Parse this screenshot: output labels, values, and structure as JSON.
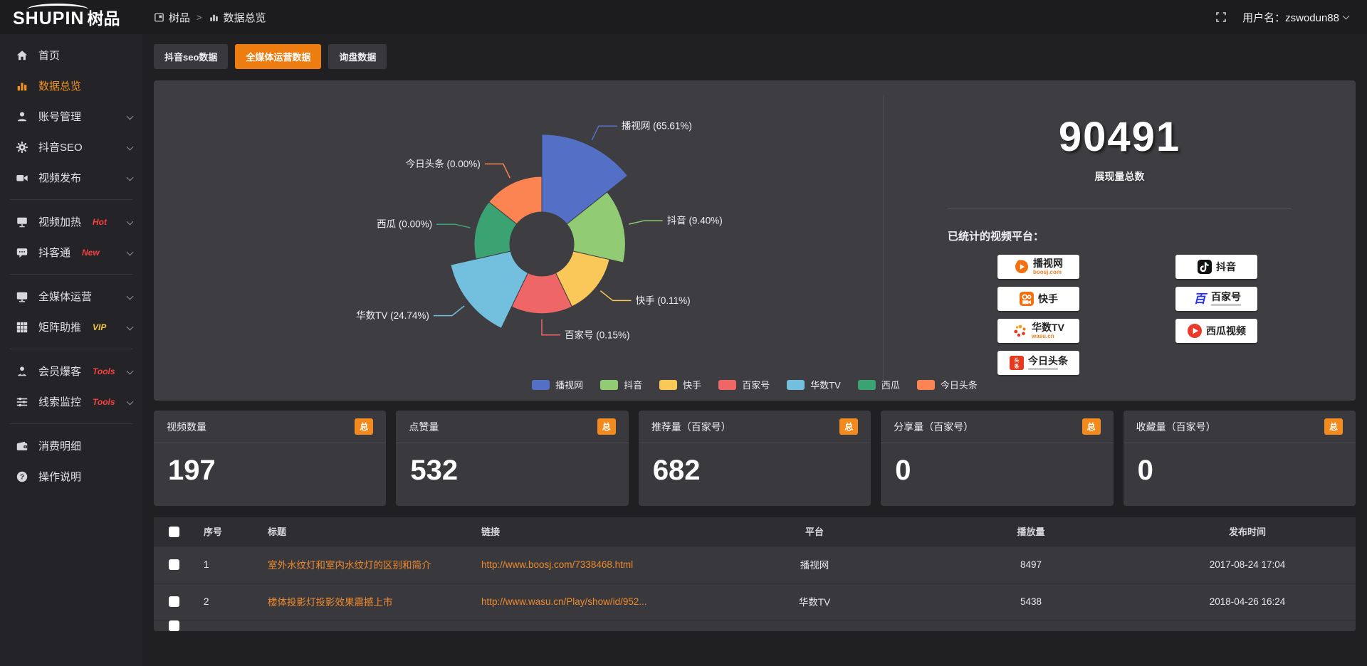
{
  "topbar": {
    "brand_en": "SHUPIN",
    "brand_cn": "树品",
    "breadcrumb": {
      "root": "树品",
      "separator": ">",
      "current": "数据总览"
    },
    "username": "用户名：zswodun88"
  },
  "sidebar": {
    "items": [
      {
        "label": "首页",
        "icon": "home-icon"
      },
      {
        "label": "数据总览",
        "icon": "chart-icon",
        "active": true
      },
      {
        "label": "账号管理",
        "icon": "user-icon",
        "chevron": true
      },
      {
        "label": "抖音SEO",
        "icon": "gear-icon",
        "chevron": true
      },
      {
        "label": "视频发布",
        "icon": "camera-icon",
        "chevron": true
      },
      {
        "label": "视频加热",
        "icon": "heat-icon",
        "tag": "Hot",
        "tag_color": "#f5413e",
        "chevron": true
      },
      {
        "label": "抖客通",
        "icon": "chat-icon",
        "tag": "New",
        "tag_color": "#f5413e",
        "chevron": true
      },
      {
        "label": "全媒体运营",
        "icon": "monitor-icon",
        "chevron": true
      },
      {
        "label": "矩阵助推",
        "icon": "grid-icon",
        "tag": "VIP",
        "tag_color": "#edc243",
        "chevron": true
      },
      {
        "label": "会员爆客",
        "icon": "member-icon",
        "tag": "Tools",
        "tag_color": "#f5413e",
        "chevron": true
      },
      {
        "label": "线索监控",
        "icon": "sliders-icon",
        "tag": "Tools",
        "tag_color": "#f5413e",
        "chevron": true
      },
      {
        "label": "消费明细",
        "icon": "wallet-icon"
      },
      {
        "label": "操作说明",
        "icon": "help-icon"
      }
    ]
  },
  "tabs": {
    "items": [
      {
        "label": "抖音seo数据"
      },
      {
        "label": "全媒体运营数据",
        "active": true
      },
      {
        "label": "询盘数据"
      }
    ]
  },
  "chart_data": {
    "type": "pie",
    "subtype": "nightingale-rose",
    "legend_position": "bottom",
    "hole": true,
    "items": [
      {
        "name": "播视网",
        "pct": 65.61,
        "label": "播视网 (65.61%)",
        "color": "#5470c6"
      },
      {
        "name": "抖音",
        "pct": 9.4,
        "label": "抖音 (9.40%)",
        "color": "#91cc75"
      },
      {
        "name": "快手",
        "pct": 0.11,
        "label": "快手 (0.11%)",
        "color": "#fac858"
      },
      {
        "name": "百家号",
        "pct": 0.15,
        "label": "百家号 (0.15%)",
        "color": "#ee6666"
      },
      {
        "name": "华数TV",
        "pct": 24.74,
        "label": "华数TV (24.74%)",
        "color": "#73c0de"
      },
      {
        "name": "西瓜",
        "pct": 0.0,
        "label": "西瓜 (0.00%)",
        "color": "#3ba272"
      },
      {
        "name": "今日头条",
        "pct": 0.0,
        "label": "今日头条 (0.00%)",
        "color": "#fc8452"
      }
    ]
  },
  "summary": {
    "total_value": "90491",
    "total_label": "展现量总数",
    "platforms_title": "已统计的视频平台：",
    "platforms": [
      {
        "name": "播视网",
        "sub": "boosj.com",
        "icon": "boosj-icon"
      },
      {
        "name": "快手",
        "icon": "kuaishou-icon"
      },
      {
        "name": "华数TV",
        "sub": "wasu.cn",
        "icon": "wasu-icon"
      },
      {
        "name": "今日头条",
        "icon": "toutiao-icon"
      },
      {
        "name": "抖音",
        "icon": "douyin-icon"
      },
      {
        "name": "百家号",
        "icon": "baijiahao-icon"
      },
      {
        "name": "西瓜视频",
        "icon": "xigua-icon"
      }
    ]
  },
  "stat_cards": {
    "items": [
      {
        "label": "视频数量",
        "badge": "总",
        "value": "197"
      },
      {
        "label": "点赞量",
        "badge": "总",
        "value": "532"
      },
      {
        "label": "推荐量（百家号）",
        "badge": "总",
        "value": "682"
      },
      {
        "label": "分享量（百家号）",
        "badge": "总",
        "value": "0"
      },
      {
        "label": "收藏量（百家号）",
        "badge": "总",
        "value": "0"
      }
    ]
  },
  "table": {
    "headers": {
      "seq": "序号",
      "title": "标题",
      "link": "链接",
      "platform": "平台",
      "plays": "播放量",
      "time": "发布时间"
    },
    "rows": [
      {
        "seq": "1",
        "title": "室外水纹灯和室内水纹灯的区别和简介",
        "link": "http://www.boosj.com/7338468.html",
        "platform": "播视网",
        "plays": "8497",
        "time": "2017-08-24 17:04"
      },
      {
        "seq": "2",
        "title": "楼体投影灯投影效果震撼上市",
        "link": "http://www.wasu.cn/Play/show/id/952...",
        "platform": "华数TV",
        "plays": "5438",
        "time": "2018-04-26 16:24"
      }
    ]
  }
}
